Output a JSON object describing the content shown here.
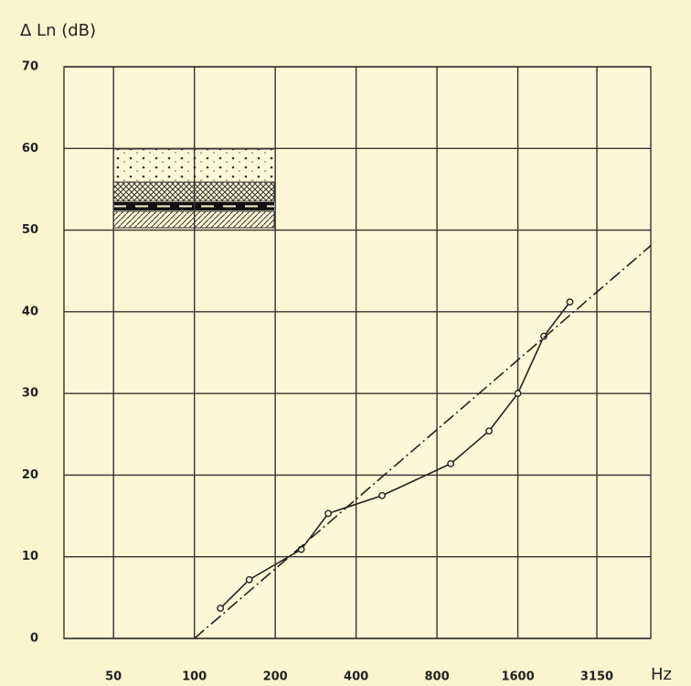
{
  "chart_data": {
    "type": "line",
    "y_label": "Δ Ln (dB)",
    "x_label": "Hz",
    "log_x": true,
    "grid": true,
    "xlim": [
      32.7,
      5000
    ],
    "xticks": [
      50,
      100,
      200,
      400,
      800,
      1600,
      3150
    ],
    "ylim": [
      0,
      70
    ],
    "yticks": [
      0,
      10,
      20,
      30,
      40,
      50,
      60,
      70
    ],
    "series": [
      {
        "color": "#222222",
        "markers": true,
        "dash": false,
        "x": [
          125,
          160,
          250,
          315,
          500,
          900,
          1250,
          1600,
          2000,
          2500
        ],
        "values": [
          3.7,
          7.2,
          10.9,
          15.3,
          17.5,
          21.4,
          25.4,
          30,
          37,
          41.2
        ]
      },
      {
        "color": "#222222",
        "markers": false,
        "dash": true,
        "x": [
          100,
          5000
        ],
        "values": [
          0,
          48.1
        ]
      }
    ]
  }
}
